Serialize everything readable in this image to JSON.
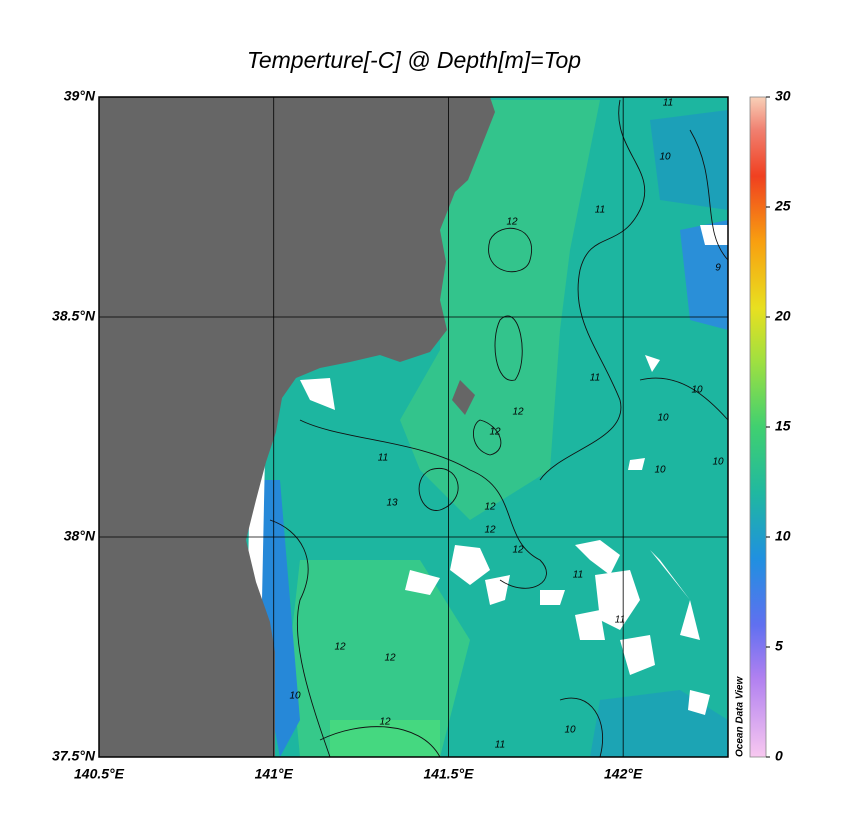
{
  "chart_data": {
    "type": "map",
    "title": "Temperture[-C] @ Depth[m]=Top",
    "xlim": [
      140.5,
      142.3
    ],
    "ylim": [
      37.5,
      39
    ],
    "xticks": [
      {
        "value": 140.5,
        "label": "140.5°E"
      },
      {
        "value": 141,
        "label": "141°E"
      },
      {
        "value": 141.5,
        "label": "141.5°E"
      },
      {
        "value": 142,
        "label": "142°E"
      }
    ],
    "yticks": [
      {
        "value": 37.5,
        "label": "37.5°N"
      },
      {
        "value": 38,
        "label": "38°N"
      },
      {
        "value": 38.5,
        "label": "38.5°N"
      },
      {
        "value": 39,
        "label": "39°N"
      }
    ],
    "grid": true,
    "colorbar": {
      "lim": [
        0,
        30
      ],
      "ticks": [
        0,
        5,
        10,
        15,
        20,
        25,
        30
      ]
    },
    "watermark": "Ocean Data View",
    "contour_labels": [
      "11",
      "10",
      "11",
      "12",
      "9",
      "10",
      "11",
      "12",
      "10",
      "12",
      "11",
      "10",
      "10",
      "13",
      "12",
      "12",
      "12",
      "11",
      "11",
      "12",
      "12",
      "10",
      "12",
      "11",
      "10"
    ]
  }
}
